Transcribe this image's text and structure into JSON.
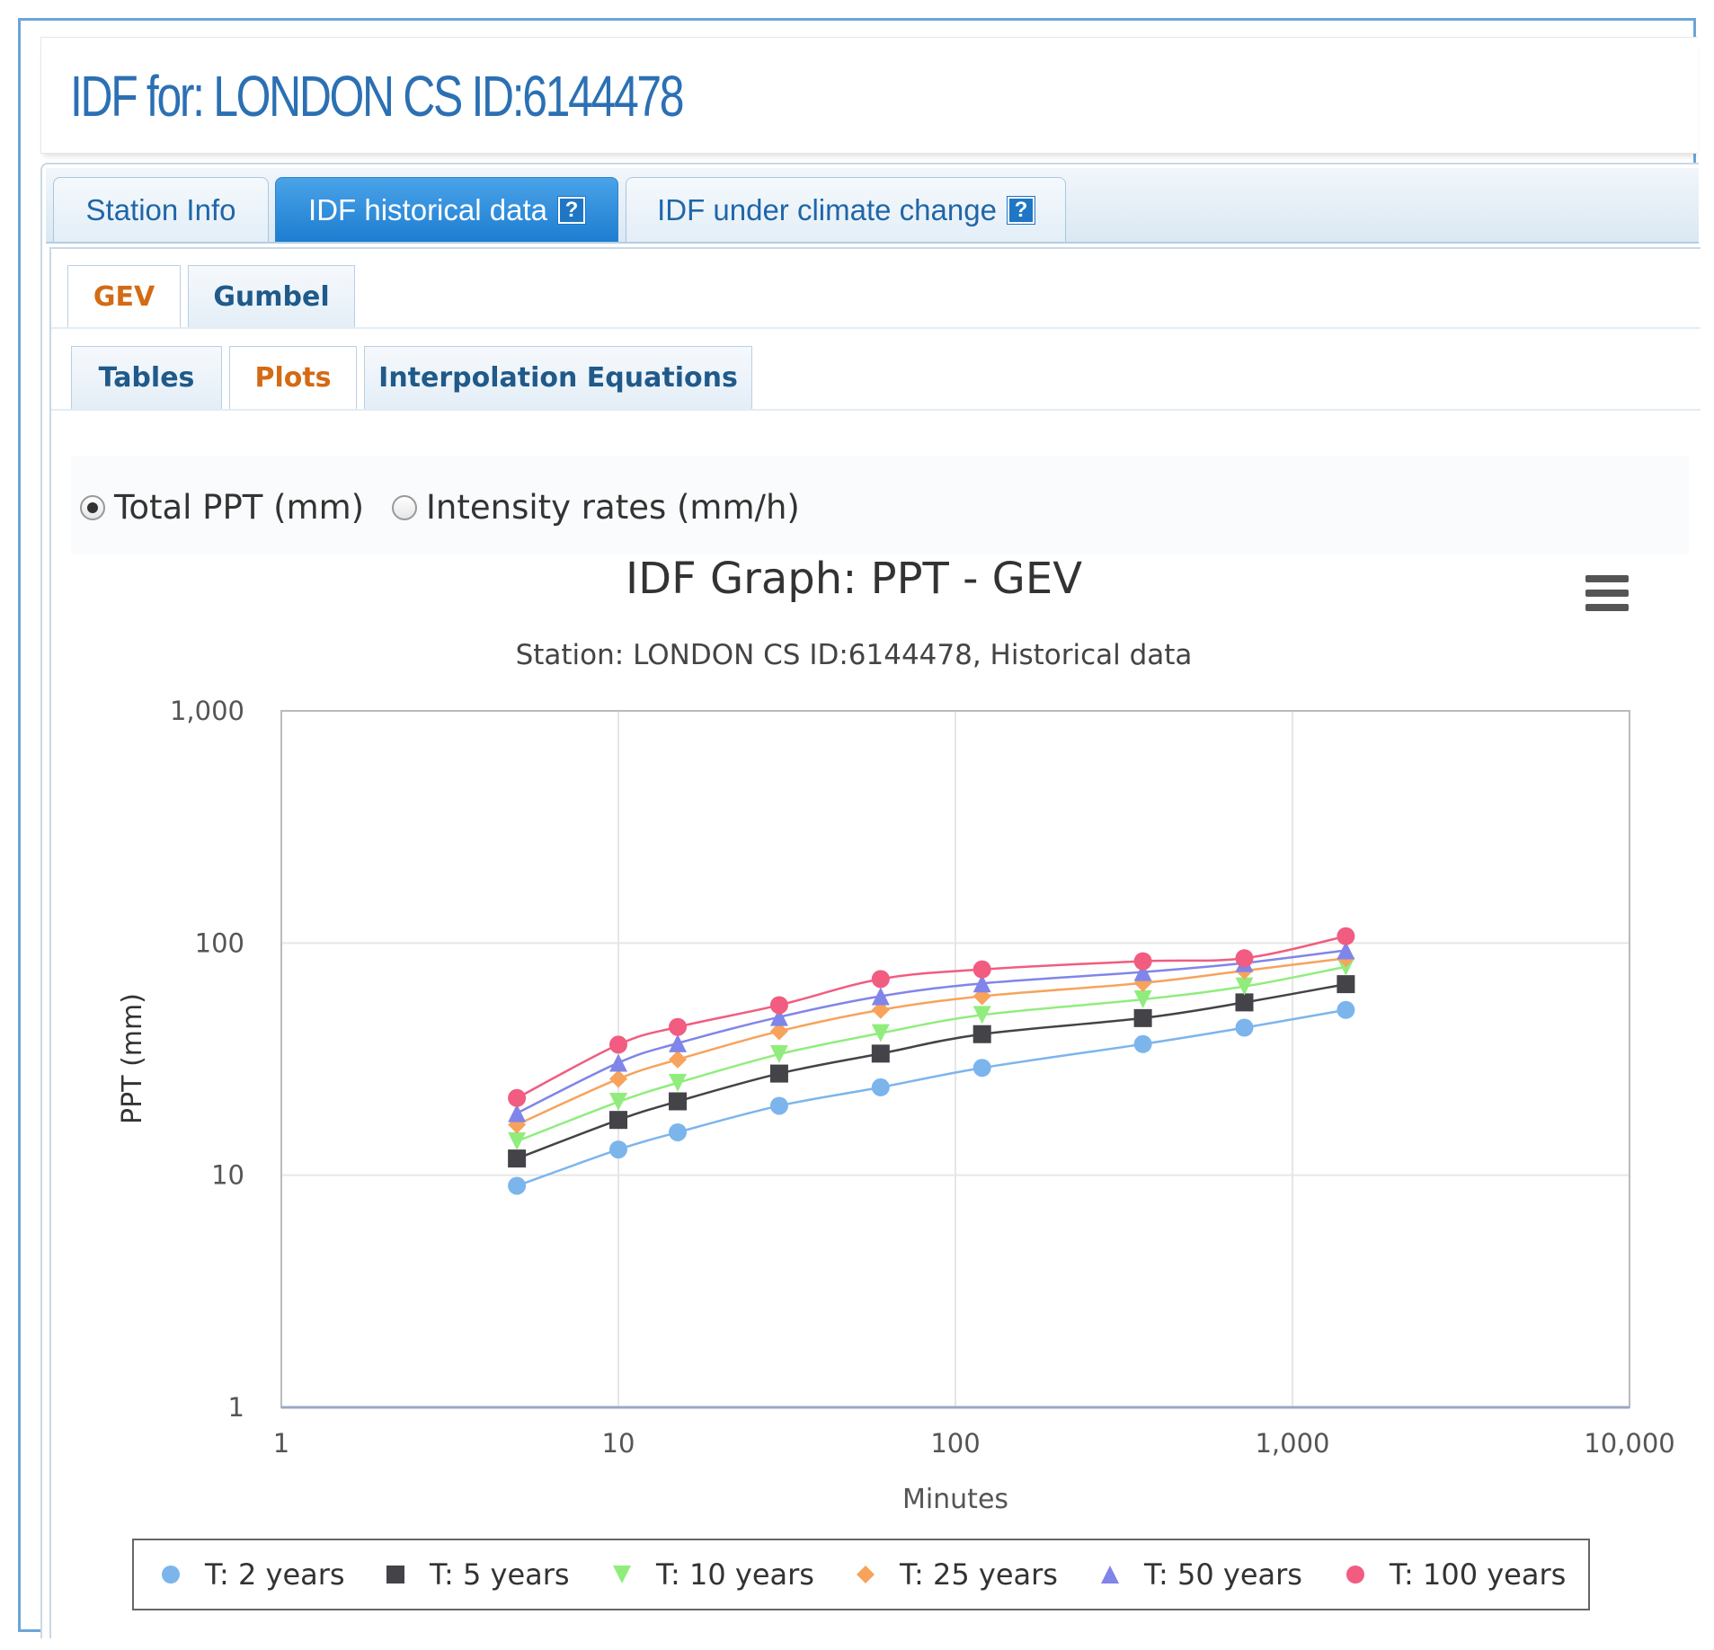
{
  "page": {
    "title": "IDF for: LONDON CS ID:6144478"
  },
  "main_tabs": [
    {
      "label": "Station Info",
      "help": false,
      "active": false
    },
    {
      "label": "IDF historical data",
      "help": true,
      "active": true
    },
    {
      "label": "IDF under climate change",
      "help": true,
      "active": false
    }
  ],
  "method_tabs": [
    {
      "label": "GEV",
      "active": true
    },
    {
      "label": "Gumbel",
      "active": false
    }
  ],
  "view_tabs": [
    {
      "label": "Tables",
      "active": false
    },
    {
      "label": "Plots",
      "active": true
    },
    {
      "label": "Interpolation Equations",
      "active": false
    }
  ],
  "options": [
    {
      "label": "Total PPT (mm)",
      "checked": true
    },
    {
      "label": "Intensity rates (mm/h)",
      "checked": false
    }
  ],
  "help_icon_glyph": "?",
  "chart_data": {
    "type": "line",
    "title": "IDF Graph: PPT - GEV",
    "subtitle": "Station: LONDON CS ID:6144478, Historical data",
    "xlabel": "Minutes",
    "ylabel": "PPT (mm)",
    "xscale": "log",
    "yscale": "log",
    "xlim": [
      1,
      10000
    ],
    "ylim": [
      1,
      1000
    ],
    "xticks": [
      1,
      10,
      100,
      1000,
      10000
    ],
    "xtick_labels": [
      "1",
      "10",
      "100",
      "1,000",
      "10,000"
    ],
    "yticks": [
      1,
      10,
      100,
      1000
    ],
    "ytick_labels": [
      "1",
      "10",
      "100",
      "1,000"
    ],
    "grid": true,
    "legend_position": "bottom",
    "x": [
      5,
      10,
      15,
      30,
      60,
      120,
      360,
      720,
      1440
    ],
    "series": [
      {
        "name": "T: 2 years",
        "marker": "circle",
        "color": "#7cb5ec",
        "values": [
          9.0,
          12.9,
          15.3,
          19.9,
          23.9,
          29.0,
          36.7,
          43.2,
          51.5
        ]
      },
      {
        "name": "T: 5 years",
        "marker": "square",
        "color": "#434348",
        "values": [
          11.8,
          17.3,
          20.8,
          27.4,
          33.4,
          40.5,
          47.5,
          55.5,
          66.5
        ]
      },
      {
        "name": "T: 10 years",
        "marker": "triangle-down",
        "color": "#90ed7d",
        "values": [
          14.0,
          20.7,
          25.0,
          33.2,
          40.9,
          49.0,
          57.2,
          65.0,
          79.0
        ]
      },
      {
        "name": "T: 25 years",
        "marker": "diamond",
        "color": "#f7a35c",
        "values": [
          16.5,
          26.0,
          31.5,
          41.7,
          51.5,
          59.0,
          67.3,
          76.0,
          86.0
        ]
      },
      {
        "name": "T: 50 years",
        "marker": "triangle",
        "color": "#8085e9",
        "values": [
          18.5,
          30.5,
          37.0,
          48.0,
          59.0,
          67.0,
          75.0,
          82.0,
          93.0
        ]
      },
      {
        "name": "T: 100 years",
        "marker": "circle",
        "color": "#f15c80",
        "values": [
          21.5,
          36.5,
          43.5,
          54.0,
          70.0,
          77.0,
          83.5,
          86.0,
          107.0
        ]
      }
    ]
  },
  "colors": {
    "accent": "#2b70b3",
    "active_tab": "#1d7dd0",
    "active_subtab_text": "#d46a14"
  }
}
